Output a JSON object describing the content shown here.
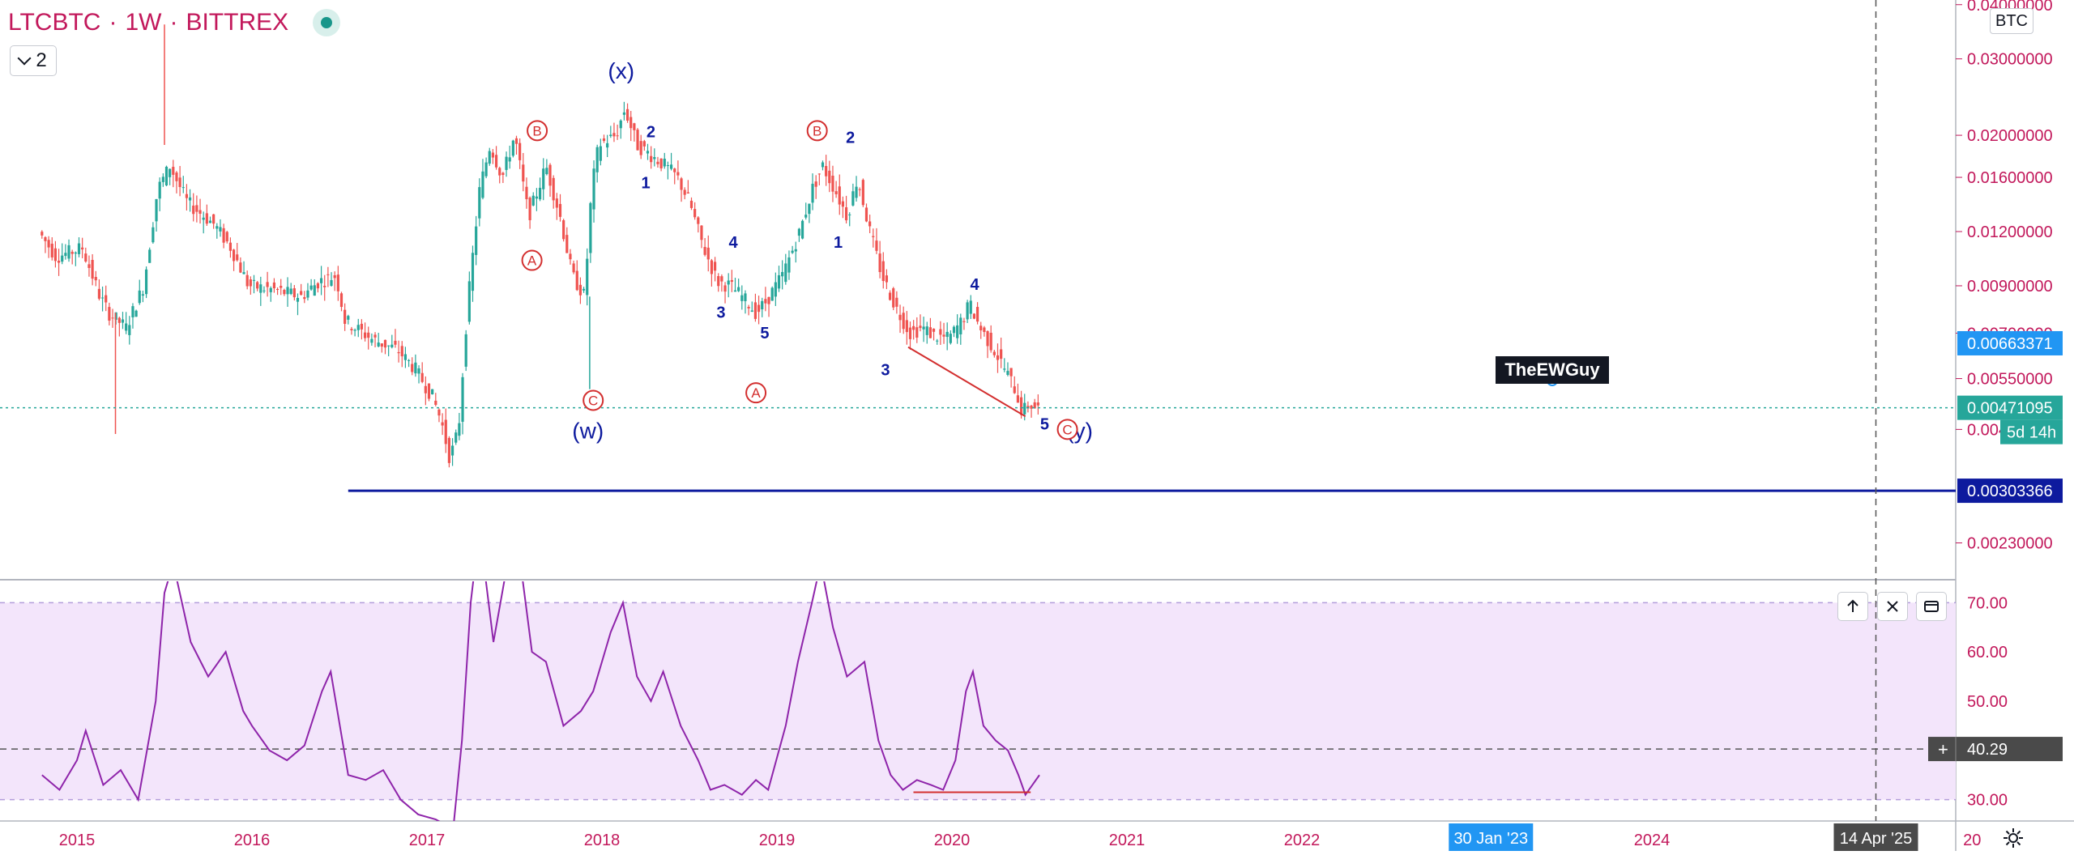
{
  "header": {
    "symbol": "LTCBTC",
    "interval": "1W",
    "exchange": "BITTREX",
    "separator": "·"
  },
  "legend_toggle": {
    "count": "2"
  },
  "currency": "BTC",
  "watermark": "TheEWGuy",
  "colors": {
    "up_candle": "#26a69a",
    "down_candle": "#ef5350",
    "rsi_line": "#8e24aa",
    "rsi_band": "#f3e5fb",
    "wave_blue": "#0d1a9e",
    "wave_red": "#d32f2f",
    "text_pink": "#c2185b",
    "support_line": "#0d1a9e",
    "current_price": "#26a69a",
    "last_label": "#2196f3"
  },
  "chart_data": [
    {
      "type": "candlestick",
      "scale": "log",
      "x_range": [
        "2014-10-15",
        "2026-07-01"
      ],
      "y_range": [
        0.0019,
        0.041
      ],
      "x_ticks": [
        {
          "label": "2015",
          "t": 2015.0
        },
        {
          "label": "2016",
          "t": 2016.0
        },
        {
          "label": "2017",
          "t": 2017.0
        },
        {
          "label": "2018",
          "t": 2018.0
        },
        {
          "label": "2019",
          "t": 2019.0
        },
        {
          "label": "2020",
          "t": 2020.0
        },
        {
          "label": "2021",
          "t": 2021.0
        },
        {
          "label": "2022",
          "t": 2022.0
        },
        {
          "label": "2024",
          "t": 2024.0
        },
        {
          "label": "20",
          "t": 2025.83
        }
      ],
      "y_ticks": [
        "0.04000000",
        "0.03000000",
        "0.02000000",
        "0.01600000",
        "0.01200000",
        "0.00900000",
        "0.00700000",
        "0.00550000",
        "0.00420000",
        "0.00230000"
      ],
      "y_tick_values": [
        0.04,
        0.03,
        0.02,
        0.016,
        0.012,
        0.009,
        0.007,
        0.0055,
        0.0042,
        0.0023
      ],
      "price_path": [
        [
          2014.8,
          0.012
        ],
        [
          2014.9,
          0.0105
        ],
        [
          2015.05,
          0.011
        ],
        [
          2015.15,
          0.0085
        ],
        [
          2015.2,
          0.0078
        ],
        [
          2015.3,
          0.0072
        ],
        [
          2015.4,
          0.009
        ],
        [
          2015.48,
          0.015
        ],
        [
          2015.55,
          0.017
        ],
        [
          2015.65,
          0.014
        ],
        [
          2015.8,
          0.0125
        ],
        [
          2015.9,
          0.011
        ],
        [
          2016.0,
          0.009
        ],
        [
          2016.15,
          0.0088
        ],
        [
          2016.3,
          0.0085
        ],
        [
          2016.4,
          0.0092
        ],
        [
          2016.5,
          0.0095
        ],
        [
          2016.55,
          0.0075
        ],
        [
          2016.7,
          0.0068
        ],
        [
          2016.85,
          0.0064
        ],
        [
          2016.95,
          0.0058
        ],
        [
          2017.05,
          0.005
        ],
        [
          2017.1,
          0.0044
        ],
        [
          2017.15,
          0.0036
        ],
        [
          2017.2,
          0.0042
        ],
        [
          2017.25,
          0.008
        ],
        [
          2017.32,
          0.015
        ],
        [
          2017.38,
          0.019
        ],
        [
          2017.45,
          0.016
        ],
        [
          2017.52,
          0.02
        ],
        [
          2017.6,
          0.013
        ],
        [
          2017.7,
          0.017
        ],
        [
          2017.78,
          0.013
        ],
        [
          2017.85,
          0.0095
        ],
        [
          2017.92,
          0.0085
        ],
        [
          2017.96,
          0.015
        ],
        [
          2018.0,
          0.019
        ],
        [
          2018.1,
          0.02
        ],
        [
          2018.15,
          0.023
        ],
        [
          2018.22,
          0.019
        ],
        [
          2018.3,
          0.018
        ],
        [
          2018.38,
          0.017
        ],
        [
          2018.45,
          0.016
        ],
        [
          2018.52,
          0.014
        ],
        [
          2018.6,
          0.011
        ],
        [
          2018.68,
          0.0092
        ],
        [
          2018.75,
          0.009
        ],
        [
          2018.82,
          0.0085
        ],
        [
          2018.9,
          0.0078
        ],
        [
          2018.95,
          0.0082
        ],
        [
          2019.05,
          0.0095
        ],
        [
          2019.15,
          0.012
        ],
        [
          2019.22,
          0.015
        ],
        [
          2019.28,
          0.017
        ],
        [
          2019.35,
          0.015
        ],
        [
          2019.42,
          0.013
        ],
        [
          2019.48,
          0.016
        ],
        [
          2019.55,
          0.012
        ],
        [
          2019.62,
          0.0095
        ],
        [
          2019.7,
          0.008
        ],
        [
          2019.78,
          0.007
        ],
        [
          2019.85,
          0.0072
        ],
        [
          2019.92,
          0.0069
        ],
        [
          2020.0,
          0.0068
        ],
        [
          2020.08,
          0.0075
        ],
        [
          2020.12,
          0.0082
        ],
        [
          2020.18,
          0.0072
        ],
        [
          2020.25,
          0.0065
        ],
        [
          2020.32,
          0.0058
        ],
        [
          2020.38,
          0.0052
        ],
        [
          2020.42,
          0.0046
        ],
        [
          2020.46,
          0.0048
        ],
        [
          2020.5,
          0.0047
        ]
      ],
      "wave_labels": [
        {
          "text": "(x)",
          "t": 2018.11,
          "p": 0.027,
          "color": "blue",
          "size": "big"
        },
        {
          "text": "(w)",
          "t": 2017.92,
          "p": 0.004,
          "color": "blue",
          "size": "big"
        },
        {
          "text": "(y)",
          "t": 2020.73,
          "p": 0.004,
          "color": "blue",
          "size": "big"
        },
        {
          "text": "B",
          "t": 2017.63,
          "p": 0.0205,
          "color": "red",
          "circle": true
        },
        {
          "text": "A",
          "t": 2017.6,
          "p": 0.0103,
          "color": "red",
          "circle": true
        },
        {
          "text": "C",
          "t": 2017.95,
          "p": 0.0049,
          "color": "red",
          "circle": true
        },
        {
          "text": "B",
          "t": 2019.23,
          "p": 0.0205,
          "color": "red",
          "circle": true
        },
        {
          "text": "A",
          "t": 2018.88,
          "p": 0.0051,
          "color": "red",
          "circle": true
        },
        {
          "text": "C",
          "t": 2020.66,
          "p": 0.0042,
          "color": "red",
          "circle": true
        },
        {
          "text": "2",
          "t": 2018.28,
          "p": 0.0198,
          "color": "blue"
        },
        {
          "text": "1",
          "t": 2018.25,
          "p": 0.0151,
          "color": "blue"
        },
        {
          "text": "4",
          "t": 2018.75,
          "p": 0.011,
          "color": "blue"
        },
        {
          "text": "3",
          "t": 2018.68,
          "p": 0.0076,
          "color": "blue"
        },
        {
          "text": "5",
          "t": 2018.93,
          "p": 0.0068,
          "color": "blue"
        },
        {
          "text": "2",
          "t": 2019.42,
          "p": 0.0192,
          "color": "blue"
        },
        {
          "text": "1",
          "t": 2019.35,
          "p": 0.011,
          "color": "blue"
        },
        {
          "text": "4",
          "t": 2020.13,
          "p": 0.0088,
          "color": "blue"
        },
        {
          "text": "3",
          "t": 2019.62,
          "p": 0.0056,
          "color": "blue"
        },
        {
          "text": "5",
          "t": 2020.53,
          "p": 0.0042,
          "color": "blue"
        }
      ],
      "trend_line": {
        "from": [
          2019.75,
          0.0065
        ],
        "to": [
          2020.42,
          0.0045
        ]
      },
      "support_line": {
        "from_t": 2016.55,
        "price": 0.00303366
      },
      "price_labels": [
        {
          "text": "0.00663371",
          "price": 0.00663371,
          "kind": "last"
        },
        {
          "text": "0.00471095",
          "price": 0.00471095,
          "kind": "current"
        },
        {
          "text": "5d 14h",
          "kind": "countdown"
        },
        {
          "text": "0.00303366",
          "price": 0.00303366,
          "kind": "support"
        }
      ],
      "crosshair": {
        "date_label": "14 Apr '25",
        "t": 2025.28
      }
    },
    {
      "type": "line",
      "name": "RSI",
      "y_range": [
        26,
        74
      ],
      "y_ticks": [
        "70.00",
        "60.00",
        "50.00",
        "40.00",
        "30.00"
      ],
      "y_tick_values": [
        70,
        60,
        50,
        40,
        30
      ],
      "band": [
        30,
        70
      ],
      "crosshair_value": "40.29",
      "cursor_date_label": "30 Jan '23",
      "cursor_date_t": 2023.08,
      "values": [
        [
          2014.8,
          35
        ],
        [
          2014.9,
          32
        ],
        [
          2015.0,
          38
        ],
        [
          2015.05,
          44
        ],
        [
          2015.15,
          33
        ],
        [
          2015.25,
          36
        ],
        [
          2015.35,
          30
        ],
        [
          2015.45,
          50
        ],
        [
          2015.5,
          72
        ],
        [
          2015.55,
          78
        ],
        [
          2015.65,
          62
        ],
        [
          2015.75,
          55
        ],
        [
          2015.85,
          60
        ],
        [
          2015.95,
          48
        ],
        [
          2016.0,
          45
        ],
        [
          2016.1,
          40
        ],
        [
          2016.2,
          38
        ],
        [
          2016.3,
          41
        ],
        [
          2016.4,
          52
        ],
        [
          2016.45,
          56
        ],
        [
          2016.55,
          35
        ],
        [
          2016.65,
          34
        ],
        [
          2016.75,
          36
        ],
        [
          2016.85,
          30
        ],
        [
          2016.95,
          27
        ],
        [
          2017.05,
          26
        ],
        [
          2017.15,
          24
        ],
        [
          2017.2,
          42
        ],
        [
          2017.25,
          70
        ],
        [
          2017.3,
          85
        ],
        [
          2017.38,
          62
        ],
        [
          2017.45,
          76
        ],
        [
          2017.52,
          82
        ],
        [
          2017.6,
          60
        ],
        [
          2017.68,
          58
        ],
        [
          2017.78,
          45
        ],
        [
          2017.88,
          48
        ],
        [
          2017.95,
          52
        ],
        [
          2018.05,
          64
        ],
        [
          2018.12,
          70
        ],
        [
          2018.2,
          55
        ],
        [
          2018.28,
          50
        ],
        [
          2018.35,
          56
        ],
        [
          2018.45,
          45
        ],
        [
          2018.55,
          38
        ],
        [
          2018.62,
          32
        ],
        [
          2018.7,
          33
        ],
        [
          2018.8,
          31
        ],
        [
          2018.88,
          34
        ],
        [
          2018.95,
          32
        ],
        [
          2019.05,
          45
        ],
        [
          2019.12,
          58
        ],
        [
          2019.2,
          70
        ],
        [
          2019.25,
          78
        ],
        [
          2019.32,
          65
        ],
        [
          2019.4,
          55
        ],
        [
          2019.5,
          58
        ],
        [
          2019.58,
          42
        ],
        [
          2019.65,
          35
        ],
        [
          2019.72,
          32
        ],
        [
          2019.8,
          34
        ],
        [
          2019.88,
          33
        ],
        [
          2019.95,
          32
        ],
        [
          2020.02,
          38
        ],
        [
          2020.08,
          52
        ],
        [
          2020.12,
          56
        ],
        [
          2020.18,
          45
        ],
        [
          2020.25,
          42
        ],
        [
          2020.32,
          40
        ],
        [
          2020.38,
          35
        ],
        [
          2020.42,
          31
        ],
        [
          2020.46,
          33
        ],
        [
          2020.5,
          35
        ]
      ],
      "divergence_line": {
        "from": [
          2019.78,
          31.5
        ],
        "to": [
          2020.45,
          31.5
        ]
      }
    }
  ]
}
